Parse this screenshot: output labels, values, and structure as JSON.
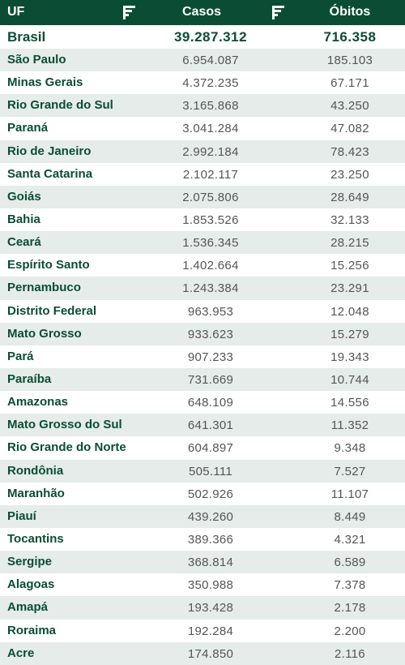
{
  "header": {
    "uf": "UF",
    "casos": "Casos",
    "obitos": "Óbitos"
  },
  "icons": {
    "sort": "sort-icon"
  },
  "colors": {
    "header_bg": "#0b4d34",
    "stripe": "#e5ece9",
    "name": "#0b4d34",
    "value": "#555555"
  },
  "total": {
    "name": "Brasil",
    "casos": "39.287.312",
    "obitos": "716.358"
  },
  "rows": [
    {
      "name": "São Paulo",
      "casos": "6.954.087",
      "obitos": "185.103"
    },
    {
      "name": "Minas Gerais",
      "casos": "4.372.235",
      "obitos": "67.171"
    },
    {
      "name": "Rio Grande do Sul",
      "casos": "3.165.868",
      "obitos": "43.250"
    },
    {
      "name": "Paraná",
      "casos": "3.041.284",
      "obitos": "47.082"
    },
    {
      "name": "Rio de Janeiro",
      "casos": "2.992.184",
      "obitos": "78.423"
    },
    {
      "name": "Santa Catarina",
      "casos": "2.102.117",
      "obitos": "23.250"
    },
    {
      "name": "Goiás",
      "casos": "2.075.806",
      "obitos": "28.649"
    },
    {
      "name": "Bahia",
      "casos": "1.853.526",
      "obitos": "32.133"
    },
    {
      "name": "Ceará",
      "casos": "1.536.345",
      "obitos": "28.215"
    },
    {
      "name": "Espírito Santo",
      "casos": "1.402.664",
      "obitos": "15.256"
    },
    {
      "name": "Pernambuco",
      "casos": "1.243.384",
      "obitos": "23.291"
    },
    {
      "name": "Distrito Federal",
      "casos": "963.953",
      "obitos": "12.048"
    },
    {
      "name": "Mato Grosso",
      "casos": "933.623",
      "obitos": "15.279"
    },
    {
      "name": "Pará",
      "casos": "907.233",
      "obitos": "19.343"
    },
    {
      "name": "Paraíba",
      "casos": "731.669",
      "obitos": "10.744"
    },
    {
      "name": "Amazonas",
      "casos": "648.109",
      "obitos": "14.556"
    },
    {
      "name": "Mato Grosso do Sul",
      "casos": "641.301",
      "obitos": "11.352"
    },
    {
      "name": "Rio Grande do Norte",
      "casos": "604.897",
      "obitos": "9.348"
    },
    {
      "name": "Rondônia",
      "casos": "505.111",
      "obitos": "7.527"
    },
    {
      "name": "Maranhão",
      "casos": "502.926",
      "obitos": "11.107"
    },
    {
      "name": "Piauí",
      "casos": "439.260",
      "obitos": "8.449"
    },
    {
      "name": "Tocantins",
      "casos": "389.366",
      "obitos": "4.321"
    },
    {
      "name": "Sergipe",
      "casos": "368.814",
      "obitos": "6.589"
    },
    {
      "name": "Alagoas",
      "casos": "350.988",
      "obitos": "7.378"
    },
    {
      "name": "Amapá",
      "casos": "193.428",
      "obitos": "2.178"
    },
    {
      "name": "Roraima",
      "casos": "192.284",
      "obitos": "2.200"
    },
    {
      "name": "Acre",
      "casos": "174.850",
      "obitos": "2.116"
    }
  ]
}
